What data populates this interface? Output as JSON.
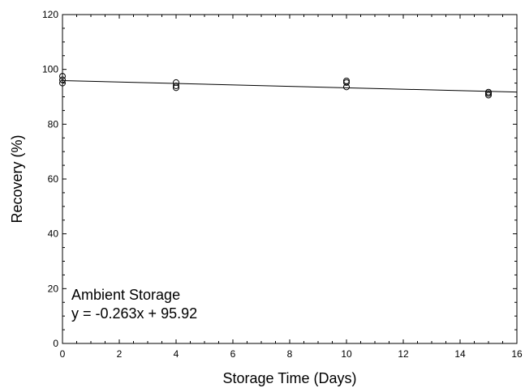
{
  "chart_data": {
    "type": "scatter",
    "title": "",
    "xlabel": "Storage Time (Days)",
    "ylabel": "Recovery (%)",
    "xlim": [
      0,
      16
    ],
    "ylim": [
      0,
      120
    ],
    "xticks": [
      0,
      2,
      4,
      6,
      8,
      10,
      12,
      14,
      16
    ],
    "yticks": [
      0,
      20,
      40,
      60,
      80,
      100,
      120
    ],
    "grid": false,
    "legend": "none",
    "series": [
      {
        "marker": "open-circle",
        "points": [
          {
            "x": 0,
            "y": 97.5
          },
          {
            "x": 0,
            "y": 96.2
          },
          {
            "x": 0,
            "y": 95.0
          },
          {
            "x": 4,
            "y": 95.2
          },
          {
            "x": 4,
            "y": 94.0
          },
          {
            "x": 4,
            "y": 93.3
          },
          {
            "x": 10,
            "y": 95.8
          },
          {
            "x": 10,
            "y": 95.2
          },
          {
            "x": 10,
            "y": 93.6
          },
          {
            "x": 15,
            "y": 91.7
          },
          {
            "x": 15,
            "y": 91.2
          },
          {
            "x": 15,
            "y": 90.6
          }
        ]
      }
    ],
    "fit_line": {
      "slope": -0.263,
      "intercept": 95.92,
      "x_range": [
        0,
        16
      ]
    },
    "annotations": {
      "line1": "Ambient Storage",
      "line2": "y = -0.263x + 95.92"
    },
    "colors": {
      "axis": "#000000",
      "marker": "#000000",
      "line": "#000000"
    }
  }
}
